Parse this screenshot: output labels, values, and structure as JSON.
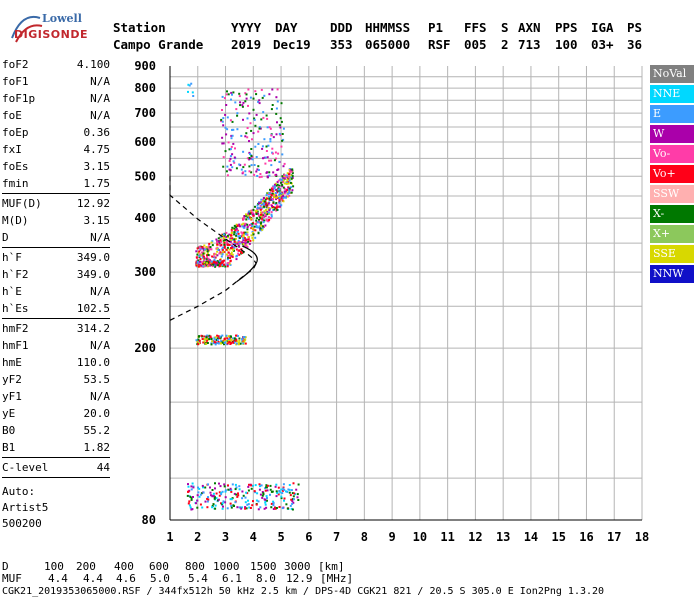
{
  "logo": {
    "line1": "Lowell",
    "line2": "DIGISONDE"
  },
  "header": {
    "row1": [
      {
        "text": "Station"
      },
      {
        "text": "YYYY"
      },
      {
        "text": "DAY"
      },
      {
        "text": "DDD"
      },
      {
        "text": "HHMMSS"
      },
      {
        "text": "P1"
      },
      {
        "text": "FFS"
      },
      {
        "text": "S"
      },
      {
        "text": "AXN"
      },
      {
        "text": "PPS"
      },
      {
        "text": "IGA"
      },
      {
        "text": "PS"
      }
    ],
    "row2": [
      {
        "text": "Campo Grande"
      },
      {
        "text": "2019"
      },
      {
        "text": "Dec19"
      },
      {
        "text": "353"
      },
      {
        "text": "065000"
      },
      {
        "text": "RSF"
      },
      {
        "text": "005"
      },
      {
        "text": "2"
      },
      {
        "text": "713"
      },
      {
        "text": "100"
      },
      {
        "text": "03+"
      },
      {
        "text": "36"
      }
    ]
  },
  "params": [
    {
      "label": "foF2",
      "value": "4.100"
    },
    {
      "label": "foF1",
      "value": "N/A"
    },
    {
      "label": "foF1p",
      "value": "N/A"
    },
    {
      "label": "foE",
      "value": "N/A"
    },
    {
      "label": "foEp",
      "value": "0.36"
    },
    {
      "label": "fxI",
      "value": "4.75"
    },
    {
      "label": "foEs",
      "value": "3.15"
    },
    {
      "label": "fmin",
      "value": "1.75"
    },
    {
      "label": "MUF(D)",
      "value": "12.92"
    },
    {
      "label": "M(D)",
      "value": "3.15"
    },
    {
      "label": "D",
      "value": "N/A"
    },
    {
      "label": "h`F",
      "value": "349.0"
    },
    {
      "label": "h`F2",
      "value": "349.0"
    },
    {
      "label": "h`E",
      "value": "N/A"
    },
    {
      "label": "h`Es",
      "value": "102.5"
    },
    {
      "label": "hmF2",
      "value": "314.2"
    },
    {
      "label": "hmF1",
      "value": "N/A"
    },
    {
      "label": "hmE",
      "value": "110.0"
    },
    {
      "label": "yF2",
      "value": "53.5"
    },
    {
      "label": "yF1",
      "value": "N/A"
    },
    {
      "label": "yE",
      "value": "20.0"
    },
    {
      "label": "B0",
      "value": "55.2"
    },
    {
      "label": "B1",
      "value": "1.82"
    },
    {
      "label": "C-level",
      "value": "44"
    }
  ],
  "auto_scaling": {
    "line1": "Auto:",
    "line2": "Artist5",
    "line3": "500200"
  },
  "legend": [
    {
      "label": "NoVal",
      "color": "#808080",
      "text_color": "#ffffff"
    },
    {
      "label": "NNE",
      "color": "#00d8ff",
      "text_color": "#ffffff"
    },
    {
      "label": "E",
      "color": "#3c9cff",
      "text_color": "#ffffff"
    },
    {
      "label": "W",
      "color": "#aa00aa",
      "text_color": "#ffffff"
    },
    {
      "label": "Vo-",
      "color": "#ff3ca8",
      "text_color": "#ffffff"
    },
    {
      "label": "Vo+",
      "color": "#ff0018",
      "text_color": "#ffffff"
    },
    {
      "label": "SSW",
      "color": "#ffb0b0",
      "text_color": "#ffffff"
    },
    {
      "label": "X-",
      "color": "#007800",
      "text_color": "#ffffff"
    },
    {
      "label": "X+",
      "color": "#8cc85c",
      "text_color": "#ffffff"
    },
    {
      "label": "SSE",
      "color": "#d8d800",
      "text_color": "#ffffff"
    },
    {
      "label": "NNW",
      "color": "#1010c8",
      "text_color": "#ffffff"
    }
  ],
  "footer": {
    "d_label": "D",
    "d_values": [
      "100",
      "200",
      "400",
      "600",
      "800",
      "1000",
      "1500",
      "3000"
    ],
    "d_unit": "[km]",
    "muf_label": "MUF",
    "muf_values": [
      "4.4",
      "4.4",
      "4.6",
      "5.0",
      "5.4",
      "6.1",
      "8.0",
      "12.9"
    ],
    "muf_unit": "[MHz]",
    "meta": "CGK21_2019353065000.RSF / 344fx512h 50 kHz 2.5 km / DPS-4D CGK21 821 / 20.5 S 305.0 E Ion2Png 1.3.20"
  },
  "chart_data": {
    "type": "scatter",
    "title": "",
    "xlabel": "",
    "ylabel": "",
    "xlim": [
      1,
      18
    ],
    "ylim": [
      80,
      900
    ],
    "x_ticks": [
      1,
      2,
      3,
      4,
      5,
      6,
      7,
      8,
      9,
      10,
      11,
      12,
      13,
      14,
      15,
      16,
      17,
      18
    ],
    "y_ticks": [
      80,
      200,
      300,
      400,
      500,
      600,
      700,
      800,
      900
    ],
    "y_scale": "log",
    "grid": true,
    "legend_position": "right",
    "profile_curve": {
      "freq": [
        0.0,
        1.0,
        2.0,
        3.0,
        3.5,
        3.8,
        4.0,
        4.1
      ],
      "height": [
        500,
        452,
        398,
        358,
        340,
        330,
        322,
        314
      ]
    },
    "lower_curve": {
      "freq": [
        1.0,
        2.0,
        3.0,
        3.6,
        4.0,
        4.1
      ],
      "height": [
        232,
        250,
        272,
        292,
        305,
        314
      ]
    },
    "echo_clusters": [
      {
        "name": "F2 trace",
        "freq_range": [
          1.9,
          5.4
        ],
        "height_range": [
          310,
          500
        ],
        "colors": [
          "#ff3ca8",
          "#aa00aa",
          "#d8d800",
          "#3c9cff",
          "#007800",
          "#ff0018"
        ]
      },
      {
        "name": "F2 multihop",
        "freq_range": [
          2.8,
          5.1
        ],
        "height_range": [
          500,
          800
        ],
        "colors": [
          "#ff3ca8",
          "#aa00aa",
          "#007800",
          "#3c9cff"
        ]
      },
      {
        "name": "Es trace",
        "freq_range": [
          1.9,
          3.7
        ],
        "height_range": [
          205,
          215
        ],
        "colors": [
          "#ff0018",
          "#007800",
          "#d8d800",
          "#3c9cff"
        ]
      },
      {
        "name": "E region",
        "freq_range": [
          1.6,
          5.6
        ],
        "height_range": [
          85,
          98
        ],
        "colors": [
          "#00d8ff",
          "#ff0018",
          "#aa00aa",
          "#3c9cff",
          "#007800"
        ]
      },
      {
        "name": "sparse",
        "freq_range": [
          1.6,
          1.8
        ],
        "height_range": [
          760,
          840
        ],
        "colors": [
          "#00d8ff",
          "#3c9cff"
        ]
      }
    ]
  }
}
